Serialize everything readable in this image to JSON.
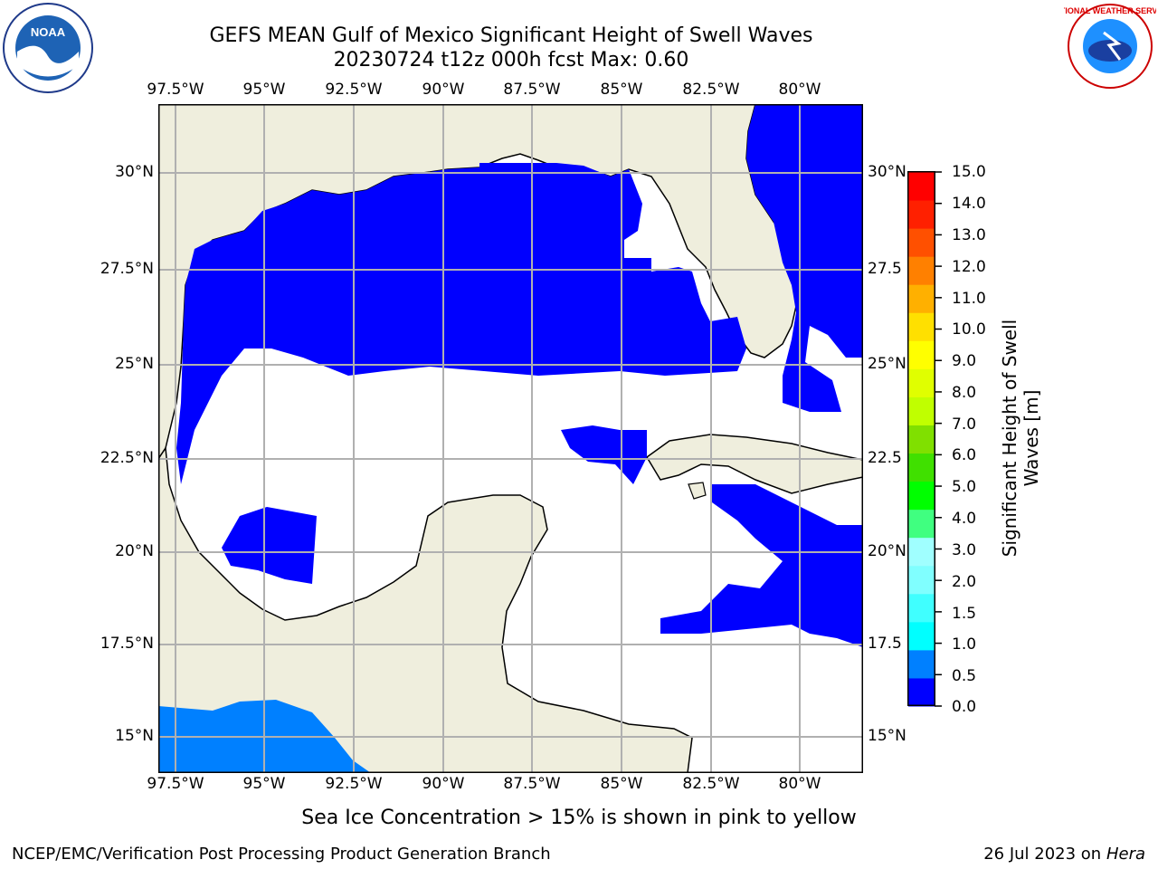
{
  "title": {
    "line1": "GEFS MEAN Gulf of Mexico Significant Height of Swell Waves",
    "line2": "20230724 t12z 000h fcst   Max: 0.60"
  },
  "map": {
    "lon_ticks": [
      "97.5°W",
      "95°W",
      "92.5°W",
      "90°W",
      "87.5°W",
      "85°W",
      "82.5°W",
      "80°W"
    ],
    "lat_ticks": [
      "30°N",
      "27.5°N",
      "25°N",
      "22.5°N",
      "20°N",
      "17.5°N",
      "15°N"
    ],
    "lat_ticks_right": [
      "30°N",
      "27.5",
      "25°N",
      "22.5",
      "20°N",
      "17.5",
      "15°N"
    ],
    "colors": {
      "land": "#efeedd",
      "ocean_low": "#0000ff",
      "ocean_mid": "#0080ff",
      "grid": "#b0b0b0"
    }
  },
  "colorbar": {
    "label": "Significant Height of Swell Waves [m]",
    "ticks": [
      "15.0",
      "14.0",
      "13.0",
      "12.0",
      "11.0",
      "10.0",
      "9.0",
      "8.0",
      "7.0",
      "6.0",
      "5.0",
      "4.0",
      "3.0",
      "2.0",
      "1.5",
      "1.0",
      "0.5",
      "0.0"
    ],
    "colors": [
      "#0000ff",
      "#0080ff",
      "#00ffff",
      "#40ffff",
      "#80ffff",
      "#a0ffff",
      "#40ff80",
      "#00ff00",
      "#40e000",
      "#80e000",
      "#c0ff00",
      "#e0ff00",
      "#ffff00",
      "#ffe000",
      "#ffb000",
      "#ff8000",
      "#ff5000",
      "#ff2000",
      "#ff0000"
    ]
  },
  "logos": {
    "left_text": "NOAA",
    "right_text": "NATIONAL WEATHER SERVICE"
  },
  "note": "Sea Ice Concentration > 15% is shown in pink to yellow",
  "footer": {
    "left": "NCEP/EMC/Verification Post Processing Product Generation Branch",
    "right_prefix": "26 Jul 2023 on ",
    "right_host": "Hera"
  }
}
